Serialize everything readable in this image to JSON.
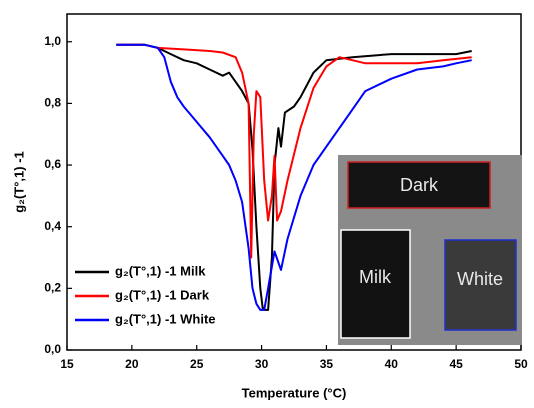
{
  "chart_data": {
    "type": "line",
    "xlabel": "Temperature (°C)",
    "ylabel": "g₂(T°,1) -1",
    "xlim": [
      15,
      50
    ],
    "ylim": [
      0,
      1.09
    ],
    "xticks": [
      15,
      20,
      25,
      30,
      35,
      40,
      45,
      50
    ],
    "yticks": [
      {
        "value": 0,
        "label": "0,0"
      },
      {
        "value": 0.2,
        "label": "0,2"
      },
      {
        "value": 0.4,
        "label": "0,4"
      },
      {
        "value": 0.6,
        "label": "0,6"
      },
      {
        "value": 0.8,
        "label": "0,8"
      },
      {
        "value": 1.0,
        "label": "1,0"
      }
    ],
    "legend": "lower left",
    "annotations": [
      "Dark",
      "Milk",
      "White"
    ],
    "series": [
      {
        "name": "g₂(T°,1) -1 Milk",
        "color": "#000000",
        "x": [
          18.8,
          21,
          22,
          23,
          24,
          25,
          26,
          27,
          27.5,
          28,
          28.5,
          29,
          29.3,
          29.6,
          29.9,
          30.1,
          30.5,
          30.8,
          31,
          31.3,
          31.5,
          31.8,
          32.5,
          33,
          34,
          35,
          37,
          40,
          43,
          45,
          46.2
        ],
        "values": [
          0.99,
          0.99,
          0.98,
          0.96,
          0.94,
          0.93,
          0.91,
          0.89,
          0.9,
          0.87,
          0.84,
          0.8,
          0.65,
          0.4,
          0.2,
          0.13,
          0.13,
          0.3,
          0.6,
          0.72,
          0.66,
          0.77,
          0.79,
          0.82,
          0.9,
          0.94,
          0.95,
          0.96,
          0.96,
          0.96,
          0.97
        ]
      },
      {
        "name": "g₂(T°,1) -1 Dark",
        "color": "#ff0000",
        "x": [
          18.8,
          21,
          22,
          24,
          26,
          27,
          28,
          28.5,
          29,
          29.2,
          29.4,
          29.6,
          29.9,
          30.2,
          30.5,
          30.8,
          31,
          31.2,
          31.5,
          32,
          33,
          34,
          35,
          36,
          37,
          38,
          40,
          42,
          44,
          46.2
        ],
        "values": [
          0.99,
          0.99,
          0.98,
          0.975,
          0.97,
          0.965,
          0.95,
          0.9,
          0.8,
          0.3,
          0.7,
          0.84,
          0.82,
          0.55,
          0.42,
          0.5,
          0.63,
          0.42,
          0.45,
          0.55,
          0.72,
          0.85,
          0.92,
          0.95,
          0.94,
          0.93,
          0.93,
          0.93,
          0.94,
          0.95
        ]
      },
      {
        "name": "g₂(T°,1) -1 White",
        "color": "#0000ff",
        "x": [
          18.8,
          21,
          22,
          22.5,
          23,
          23.5,
          24,
          25,
          26,
          27,
          27.5,
          28,
          28.5,
          29,
          29.3,
          29.6,
          29.9,
          30.2,
          30.5,
          31,
          31.5,
          32,
          33,
          34,
          35,
          36,
          37,
          38,
          40,
          42,
          44,
          45,
          46.2
        ],
        "values": [
          0.99,
          0.99,
          0.98,
          0.95,
          0.87,
          0.82,
          0.79,
          0.74,
          0.69,
          0.63,
          0.6,
          0.55,
          0.48,
          0.33,
          0.2,
          0.15,
          0.13,
          0.13,
          0.2,
          0.32,
          0.26,
          0.36,
          0.5,
          0.6,
          0.66,
          0.72,
          0.78,
          0.84,
          0.88,
          0.91,
          0.92,
          0.93,
          0.94
        ]
      }
    ]
  }
}
